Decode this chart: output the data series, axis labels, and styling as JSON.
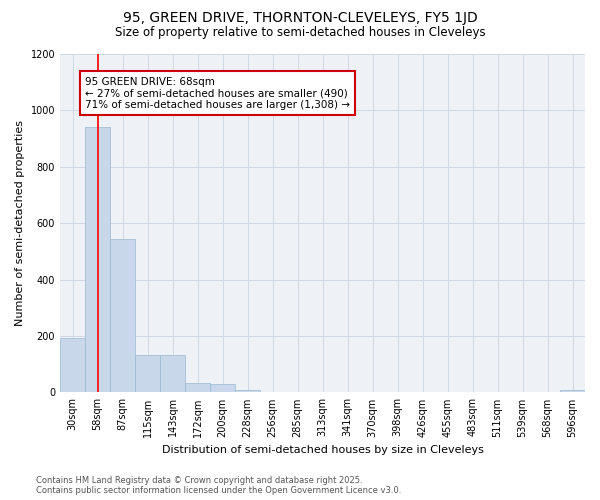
{
  "title": "95, GREEN DRIVE, THORNTON-CLEVELEYS, FY5 1JD",
  "subtitle": "Size of property relative to semi-detached houses in Cleveleys",
  "xlabel": "Distribution of semi-detached houses by size in Cleveleys",
  "ylabel": "Number of semi-detached properties",
  "bar_color": "#c8d8ea",
  "bar_edge_color": "#9ab8d0",
  "categories": [
    "30sqm",
    "58sqm",
    "87sqm",
    "115sqm",
    "143sqm",
    "172sqm",
    "200sqm",
    "228sqm",
    "256sqm",
    "285sqm",
    "313sqm",
    "341sqm",
    "370sqm",
    "398sqm",
    "426sqm",
    "455sqm",
    "483sqm",
    "511sqm",
    "539sqm",
    "568sqm",
    "596sqm"
  ],
  "values": [
    193,
    940,
    543,
    132,
    133,
    35,
    30,
    10,
    0,
    0,
    0,
    0,
    0,
    0,
    0,
    0,
    0,
    0,
    0,
    0,
    10
  ],
  "property_label": "95 GREEN DRIVE: 68sqm",
  "pct_smaller": 27,
  "pct_larger": 71,
  "n_smaller": 490,
  "n_larger": 1308,
  "vline_x": 1.0,
  "ylim": [
    0,
    1200
  ],
  "yticks": [
    0,
    200,
    400,
    600,
    800,
    1000,
    1200
  ],
  "annotation_box_color": "#ffffff",
  "annotation_box_edge_color": "#cc0000",
  "footer": "Contains HM Land Registry data © Crown copyright and database right 2025.\nContains public sector information licensed under the Open Government Licence v3.0.",
  "background_color": "#eef2f7",
  "grid_color": "#d0d8e4",
  "title_fontsize": 10,
  "subtitle_fontsize": 8.5,
  "ylabel_fontsize": 8,
  "xlabel_fontsize": 8,
  "tick_fontsize": 7,
  "ann_fontsize": 7.5,
  "footer_fontsize": 6
}
